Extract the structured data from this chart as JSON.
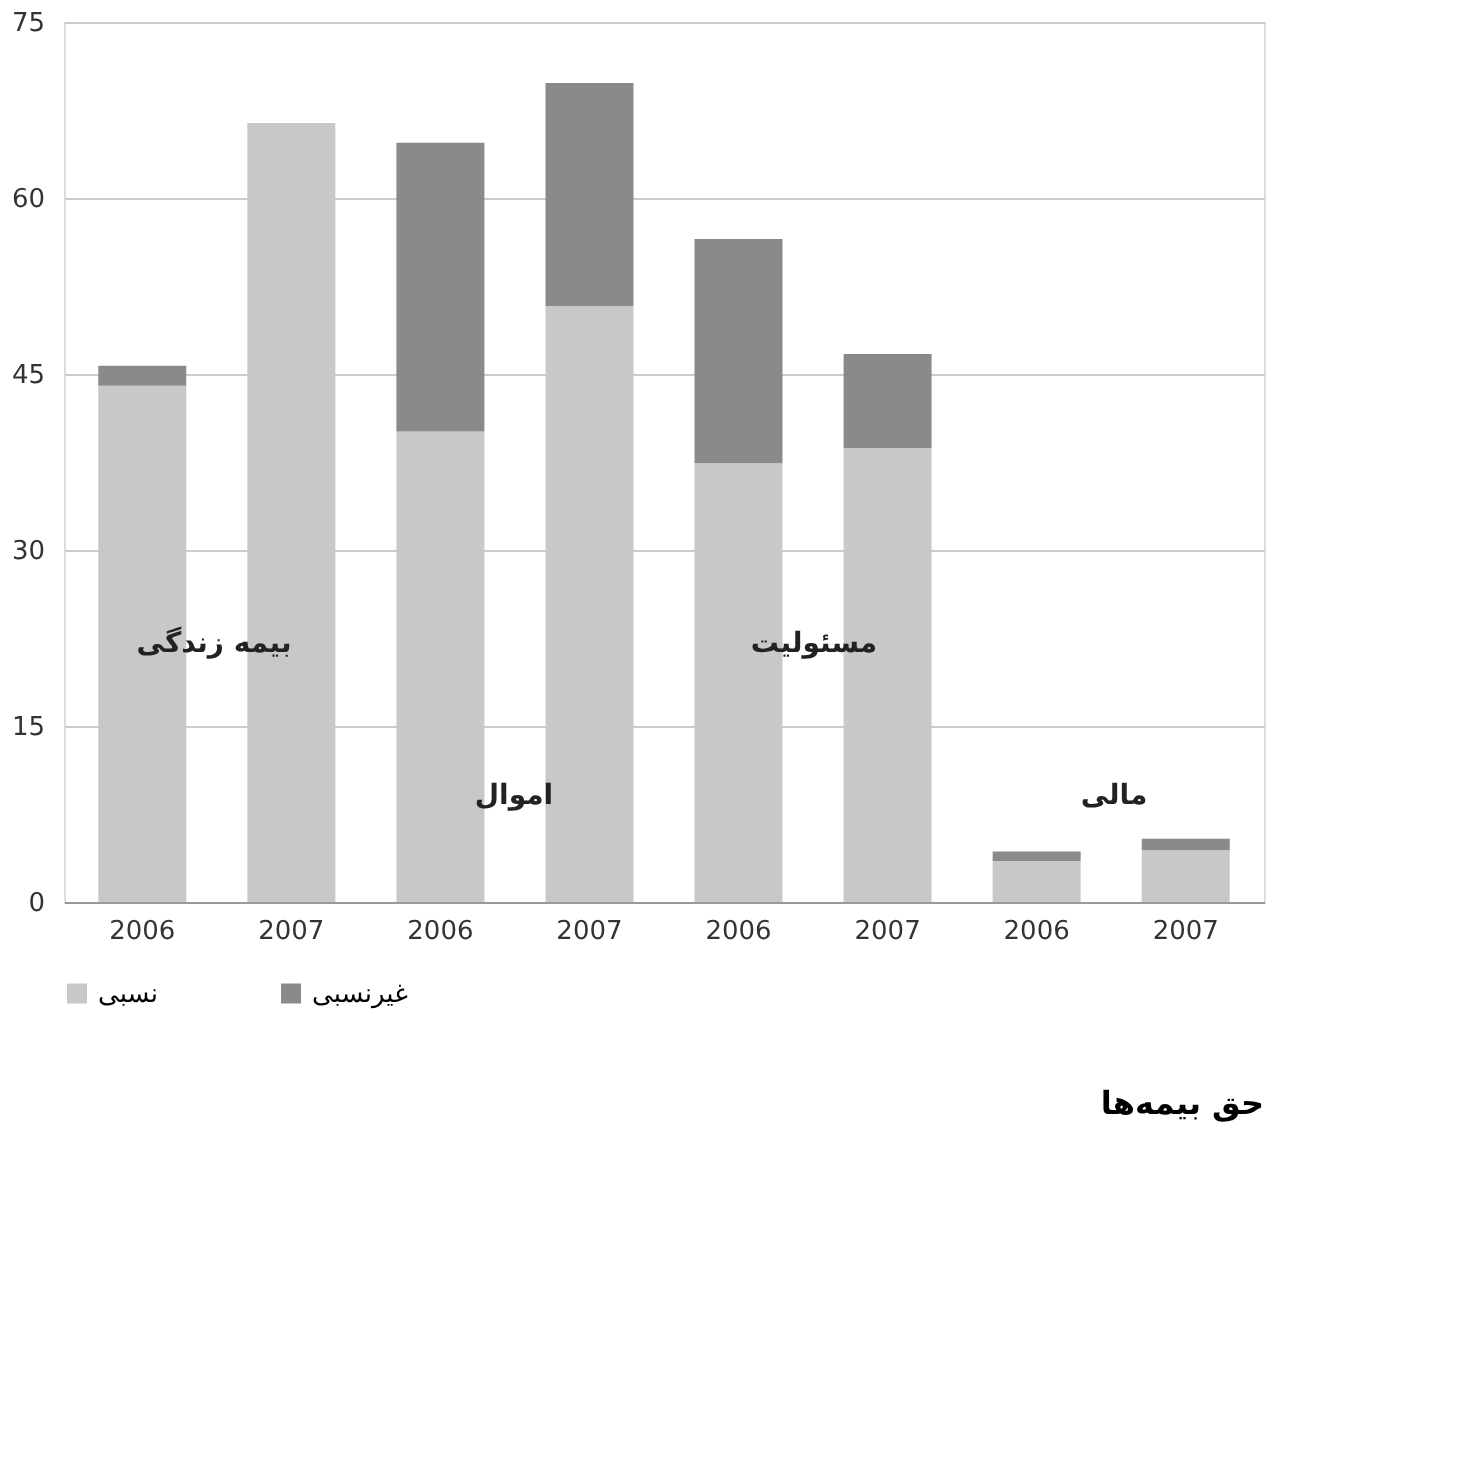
{
  "chart_data": {
    "type": "bar",
    "stacked": true,
    "categories": [
      "2006",
      "2007",
      "2006",
      "2007",
      "2006",
      "2007",
      "2006",
      "2007"
    ],
    "series": [
      {
        "name": "نسبی",
        "color": "#c8c8c8",
        "values": [
          44.0,
          66.4,
          40.1,
          50.8,
          37.4,
          38.7,
          3.5,
          4.4
        ]
      },
      {
        "name": "غیرنسبی",
        "color": "#8a8a8a",
        "values": [
          1.7,
          0,
          24.6,
          19.0,
          19.1,
          8.0,
          0.8,
          1.0
        ]
      }
    ],
    "ylim": [
      0,
      75
    ],
    "yticks": [
      0,
      15,
      30,
      45,
      60,
      75
    ],
    "grid": "y",
    "legend": "bottom",
    "annotations": [
      "بیمه زندگی",
      "اموال",
      "مسئولیت",
      "مالی",
      "حق بیمه‌ها"
    ]
  }
}
